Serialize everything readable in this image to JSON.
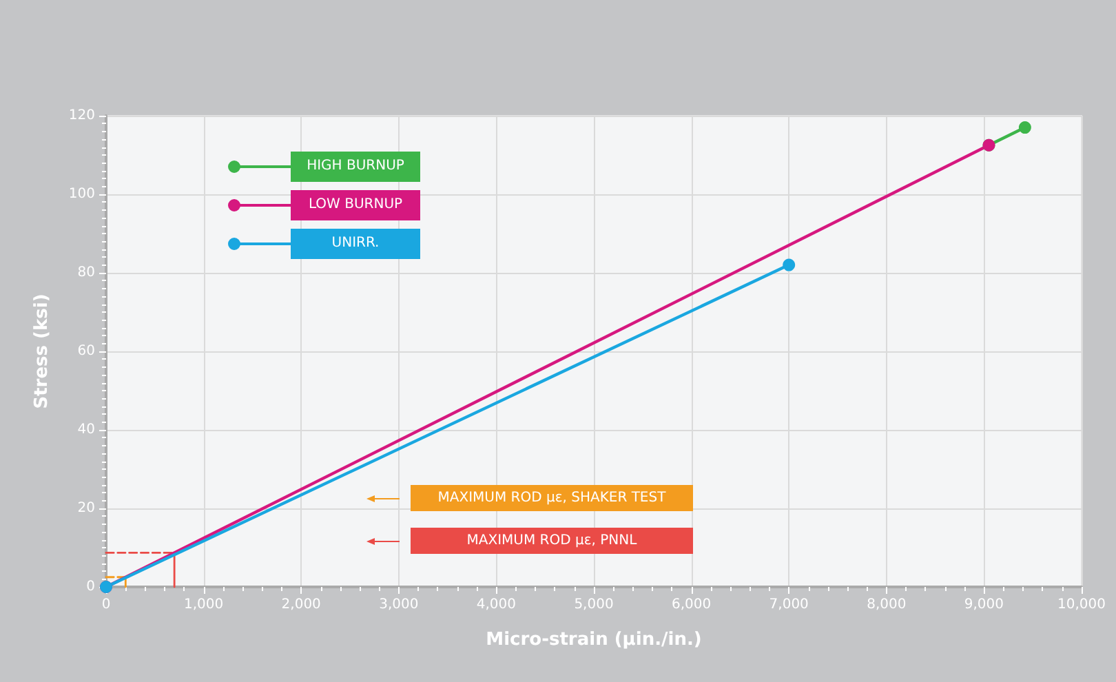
{
  "chart_data": {
    "type": "line",
    "xlabel": "Micro-strain (µin./in.)",
    "ylabel": "Stress (ksi)",
    "xlim": [
      0,
      10000
    ],
    "ylim": [
      0,
      120
    ],
    "xticks": [
      0,
      {
        "value": 1000,
        "label": "1,000"
      },
      {
        "value": 2000,
        "label": "2,000"
      },
      {
        "value": 3000,
        "label": "3,000"
      },
      {
        "value": 4000,
        "label": "4,000"
      },
      {
        "value": 5000,
        "label": "5,000"
      },
      {
        "value": 6000,
        "label": "6,000"
      },
      {
        "value": 7000,
        "label": "7,000"
      },
      {
        "value": 8000,
        "label": "8,000"
      },
      {
        "value": 9000,
        "label": "9,000"
      },
      {
        "value": 10000,
        "label": "10,000"
      }
    ],
    "yticks": [
      0,
      20,
      40,
      60,
      80,
      100,
      120
    ],
    "grid": true,
    "legend": "top left",
    "marker": "circle",
    "line_style": "solid",
    "series": [
      {
        "name": "HIGH BURNUP",
        "color": "#3db54a",
        "x": [
          9050,
          9420
        ],
        "values": [
          112.5,
          117
        ]
      },
      {
        "name": "LOW BURNUP",
        "color": "#d6187f",
        "x": [
          0,
          9050
        ],
        "values": [
          0,
          112.5
        ]
      },
      {
        "name": "UNIRR.",
        "color": "#1aa7e0",
        "x": [
          0,
          7000
        ],
        "values": [
          0,
          82
        ]
      },
      {
        "color": "#f39c1f",
        "x": [
          0,
          200
        ],
        "values": [
          2.5,
          2.5
        ],
        "line_style": "dashed",
        "marker": "none"
      },
      {
        "color": "#f39c1f",
        "x": [
          200,
          200
        ],
        "values": [
          0,
          2.5
        ],
        "marker": "none"
      },
      {
        "color": "#ea4b47",
        "x": [
          0,
          700
        ],
        "values": [
          8.7,
          8.7
        ],
        "line_style": "dashed",
        "marker": "none"
      },
      {
        "color": "#ea4b47",
        "x": [
          700,
          700
        ],
        "values": [
          0,
          8.7
        ],
        "marker": "none"
      }
    ],
    "annotations": [
      "MAXIMUM ROD με, SHAKER TEST",
      "MAXIMUM ROD με, PNNL"
    ]
  }
}
